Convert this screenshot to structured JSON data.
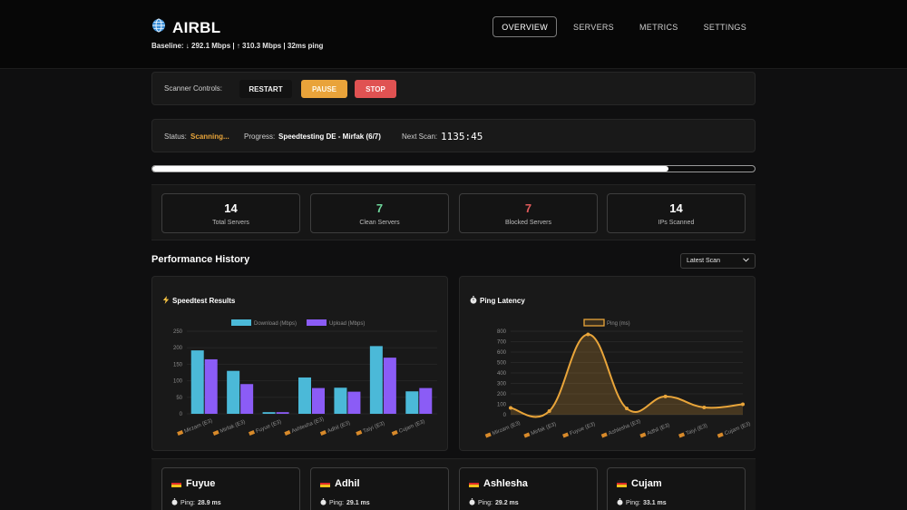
{
  "app": {
    "title": "AIRBL",
    "baseline": "Baseline: ↓ 292.1 Mbps | ↑ 310.3 Mbps | 32ms ping"
  },
  "nav": {
    "items": [
      "OVERVIEW",
      "SERVERS",
      "METRICS",
      "SETTINGS"
    ],
    "active": "OVERVIEW"
  },
  "controls": {
    "label": "Scanner Controls:",
    "restart": "RESTART",
    "pause": "PAUSE",
    "stop": "STOP"
  },
  "status": {
    "status_label": "Status:",
    "status_value": "Scanning...",
    "progress_label": "Progress:",
    "progress_value": "Speedtesting DE - Mirfak (6/7)",
    "next_label": "Next Scan:",
    "next_value": "1135:45",
    "progress_fraction": 0.857
  },
  "stats": [
    {
      "value": "14",
      "label": "Total Servers",
      "color": "#ffffff"
    },
    {
      "value": "7",
      "label": "Clean Servers",
      "color": "#6fd79c"
    },
    {
      "value": "7",
      "label": "Blocked Servers",
      "color": "#e05b5b"
    },
    {
      "value": "14",
      "label": "IPs Scanned",
      "color": "#ffffff"
    }
  ],
  "performance": {
    "title": "Performance History",
    "select_value": "Latest Scan"
  },
  "colors": {
    "download": "#4bb9d8",
    "upload": "#8b5cf6",
    "ping": "#e9a53a"
  },
  "chart_data": [
    {
      "type": "bar",
      "title": "Speedtest Results",
      "icon": "lightning-icon",
      "categories": [
        "Mirzam (E3)",
        "Mirfak (E3)",
        "Fuyue (E3)",
        "Ashlesha (E3)",
        "Adhil (E3)",
        "Taiyi (E3)",
        "Cujam (E3)"
      ],
      "series": [
        {
          "name": "Download (Mbps)",
          "values": [
            192,
            130,
            5,
            110,
            79,
            205,
            68
          ]
        },
        {
          "name": "Upload (Mbps)",
          "values": [
            165,
            90,
            5,
            78,
            67,
            170,
            78
          ]
        }
      ],
      "ylim": [
        0,
        250
      ],
      "yticks": [
        0,
        50,
        100,
        150,
        200,
        250
      ],
      "legend": "top",
      "grid": true
    },
    {
      "type": "line",
      "title": "Ping Latency",
      "icon": "stopwatch-icon",
      "categories": [
        "Mirzam (E3)",
        "Mirfak (E3)",
        "Fuyue (E3)",
        "Ashlesha (E3)",
        "Adhil (E3)",
        "Taiyi (E3)",
        "Cujam (E3)"
      ],
      "series": [
        {
          "name": "Ping (ms)",
          "values": [
            65,
            35,
            770,
            60,
            175,
            70,
            100
          ]
        }
      ],
      "ylim": [
        0,
        800
      ],
      "yticks": [
        0,
        100,
        200,
        300,
        400,
        500,
        600,
        700,
        800
      ],
      "legend": "top",
      "grid": true
    }
  ],
  "servers": [
    {
      "name": "Fuyue",
      "ping_label": "Ping:",
      "ping_value": "28.9 ms"
    },
    {
      "name": "Adhil",
      "ping_label": "Ping:",
      "ping_value": "29.1 ms"
    },
    {
      "name": "Ashlesha",
      "ping_label": "Ping:",
      "ping_value": "29.2 ms"
    },
    {
      "name": "Cujam",
      "ping_label": "Ping:",
      "ping_value": "33.1 ms"
    }
  ]
}
